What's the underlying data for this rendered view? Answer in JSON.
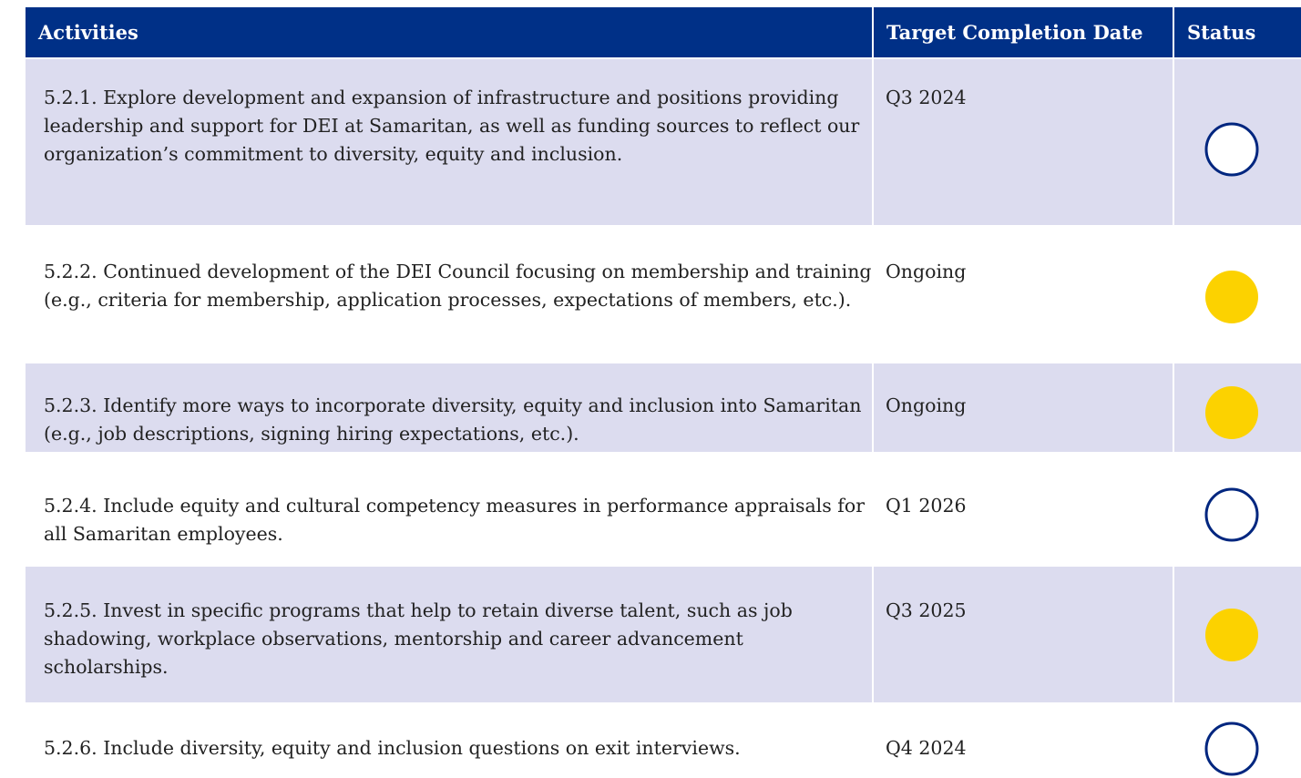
{
  "table": {
    "header": [
      "Activities",
      "Target Completion Date",
      "Status"
    ],
    "rows": [
      [
        "5.2.1. Explore development and expansion of infrastructure and positions providing leadership and support for DEI at Samaritan, as well as funding sources to reflect our organization’s commitment to diversity, equity and inclusion.",
        "Q3 2024"
      ],
      [
        "5.2.2. Continued development of the DEI Council focusing on membership and training (e.g., criteria for membership, application processes, expectations of members, etc.).",
        "Ongoing"
      ],
      [
        "5.2.3. Identify more ways to incorporate diversity, equity and inclusion into Samaritan (e.g., job descriptions, signing hiring expectations, etc.).",
        "Ongoing"
      ],
      [
        "5.2.4. Include equity and cultural competency measures in performance appraisals for all Samaritan employees.",
        "Q1 2026"
      ],
      [
        "5.2.5. Invest in specific programs that help to retain diverse talent, such as job shadowing, workplace observations, mentorship and career advancement scholarships.",
        "Q3 2025"
      ],
      [
        "5.2.6. Include diversity, equity and inclusion questions on exit interviews.",
        "Q4 2024"
      ]
    ]
  }
}
